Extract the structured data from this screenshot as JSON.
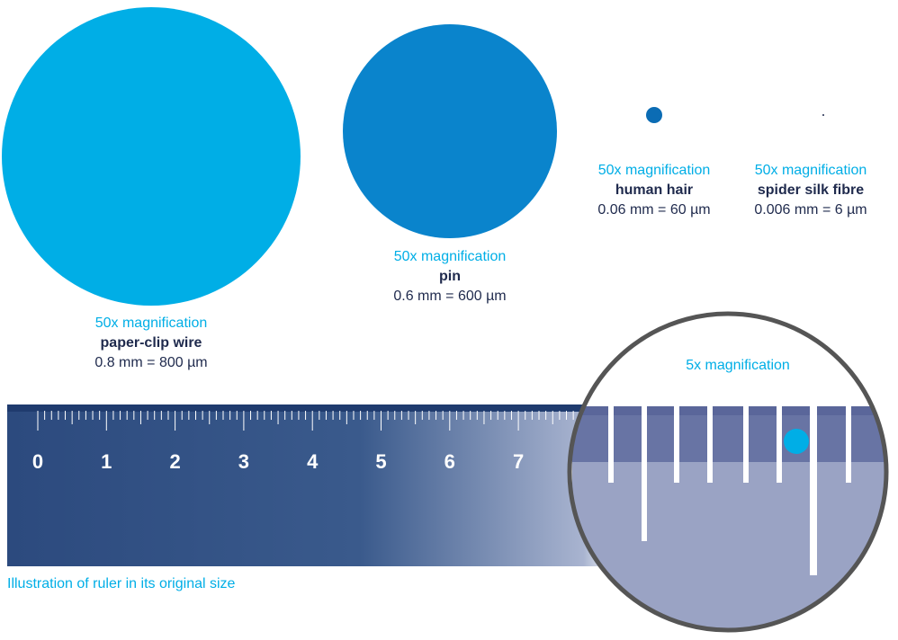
{
  "colors": {
    "cyan": "#00aee6",
    "blue": "#0a84cc",
    "hair_blue": "#0b6cb4",
    "ruler_dark": "#2c4a7e",
    "text_dark": "#1f2a4d",
    "lens_border": "#555555",
    "lens_band": "#6874a4",
    "lens_body": "#9aa3c4"
  },
  "objects": [
    {
      "id": "paper-clip-wire",
      "magnification": "50x magnification",
      "name": "paper-clip wire",
      "measurement": "0.8 mm = 800 µm",
      "diameter_um": 800
    },
    {
      "id": "pin",
      "magnification": "50x magnification",
      "name": "pin",
      "measurement": "0.6 mm = 600 µm",
      "diameter_um": 600
    },
    {
      "id": "human-hair",
      "magnification": "50x magnification",
      "name": "human hair",
      "measurement": "0.06 mm = 60 µm",
      "diameter_um": 60
    },
    {
      "id": "spider-silk-fibre",
      "magnification": "50x magnification",
      "name": "spider silk fibre",
      "measurement": "0.006 mm = 6 µm",
      "diameter_um": 6
    }
  ],
  "ruler": {
    "labels": [
      "0",
      "1",
      "2",
      "3",
      "4",
      "5",
      "6",
      "7"
    ],
    "caption": "Illustration of ruler in its original size"
  },
  "lens": {
    "title": "5x magnification"
  }
}
